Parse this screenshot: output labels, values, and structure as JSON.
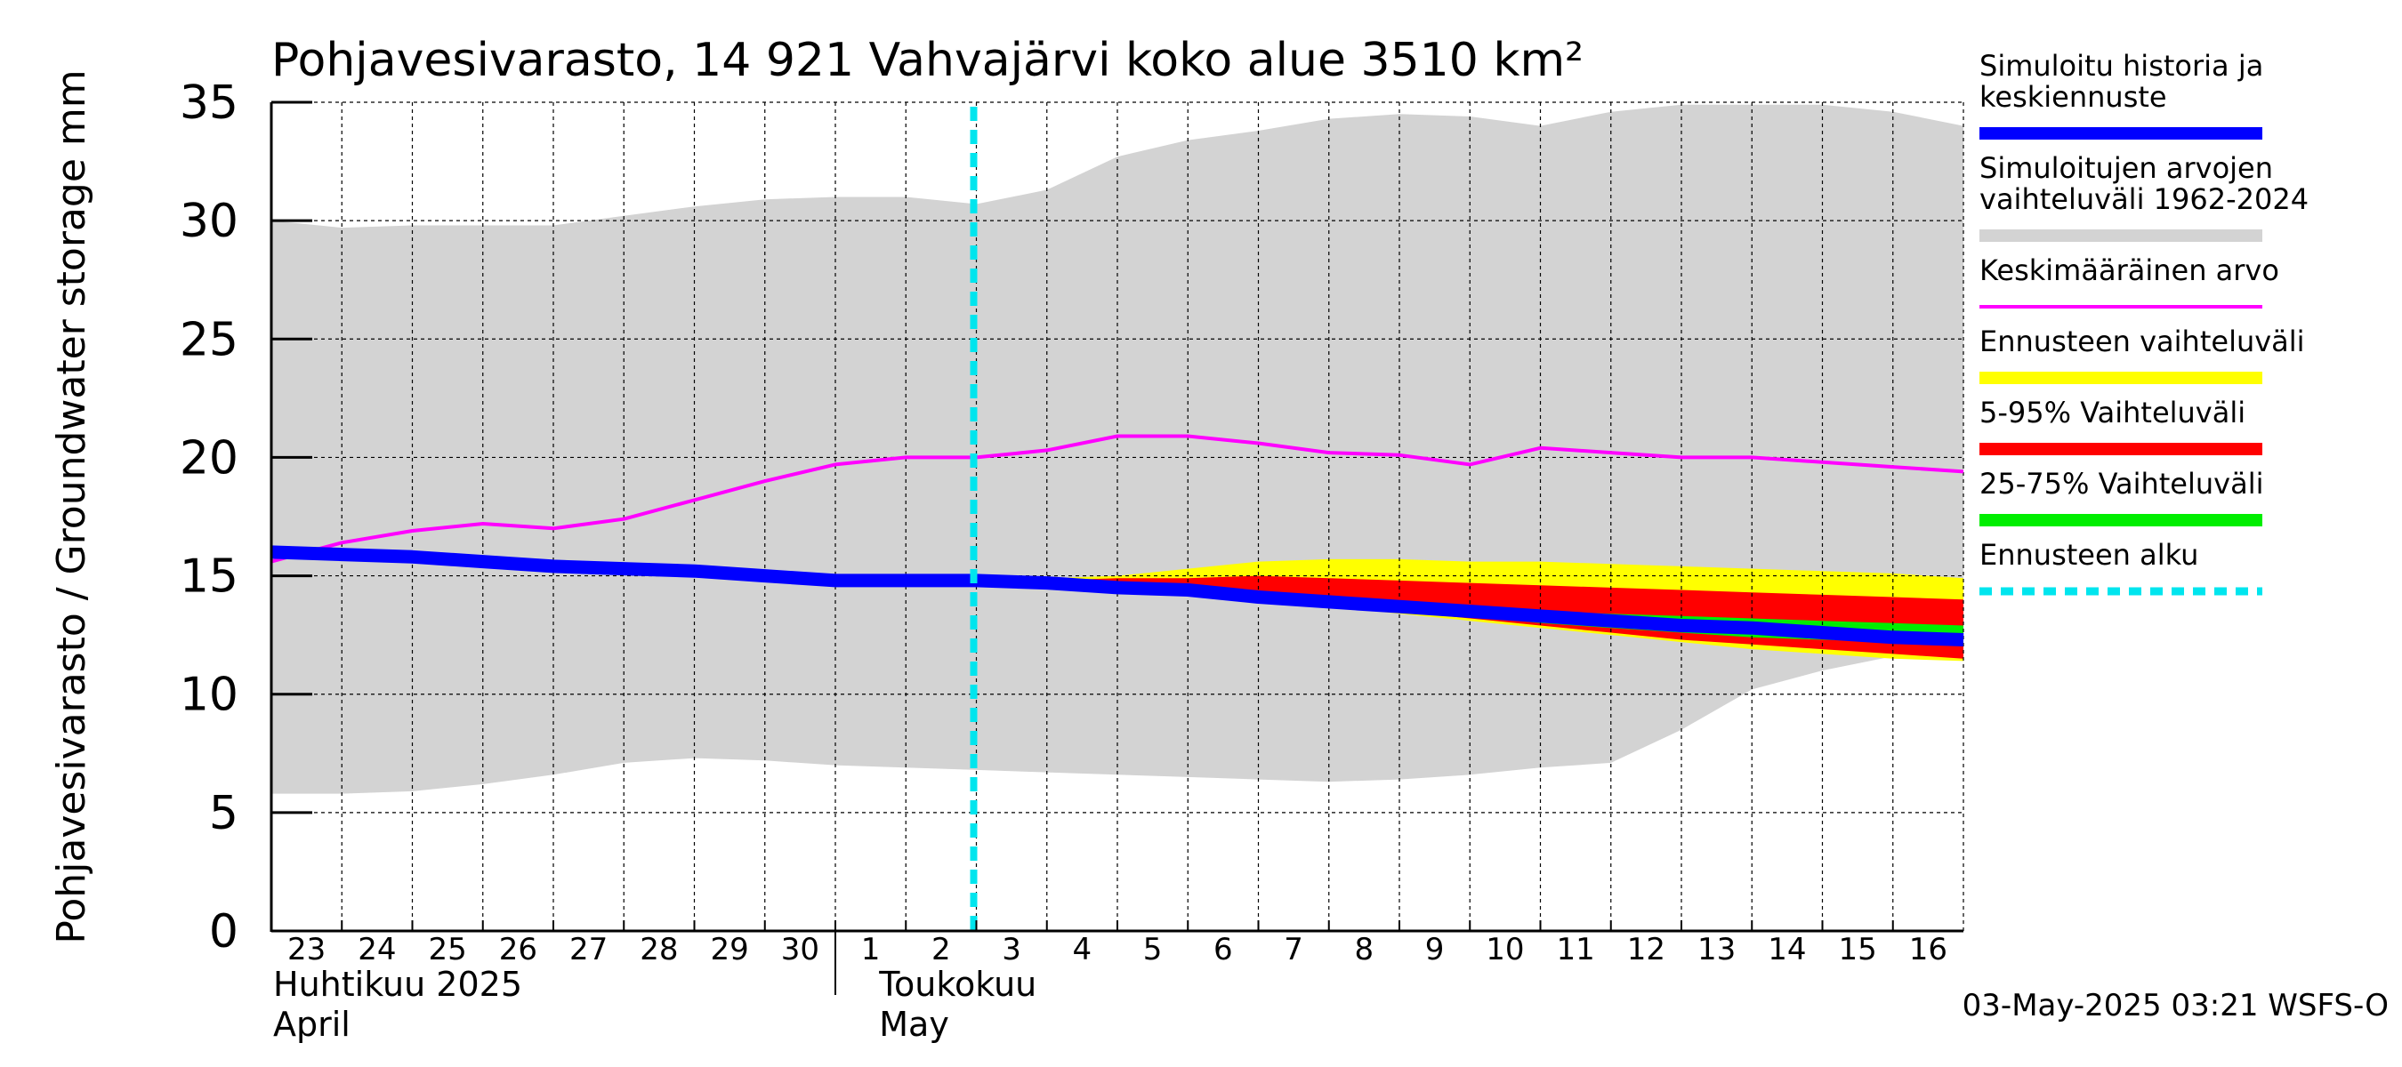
{
  "chart_data": {
    "type": "area",
    "title": "Pohjavesivarasto, 14 921 Vahvajärvi koko alue 3510 km²",
    "ylabel": "Pohjavesivarasto / Groundwater storage   mm",
    "ylim": [
      0,
      35
    ],
    "yticks": [
      0,
      5,
      10,
      15,
      20,
      25,
      30,
      35
    ],
    "grid": true,
    "x_day_labels": [
      "23",
      "24",
      "25",
      "26",
      "27",
      "28",
      "29",
      "30",
      "1",
      "2",
      "3",
      "4",
      "5",
      "6",
      "7",
      "8",
      "9",
      "10",
      "11",
      "12",
      "13",
      "14",
      "15",
      "16"
    ],
    "month_labels": [
      {
        "fi": "Huhtikuu  2025",
        "en": "April"
      },
      {
        "fi": "Toukokuu",
        "en": "May"
      }
    ],
    "x_dates": [
      "2025-04-23",
      "2025-04-24",
      "2025-04-25",
      "2025-04-26",
      "2025-04-27",
      "2025-04-28",
      "2025-04-29",
      "2025-04-30",
      "2025-05-01",
      "2025-05-02",
      "2025-05-03",
      "2025-05-04",
      "2025-05-05",
      "2025-05-06",
      "2025-05-07",
      "2025-05-08",
      "2025-05-09",
      "2025-05-10",
      "2025-05-11",
      "2025-05-12",
      "2025-05-13",
      "2025-05-14",
      "2025-05-15",
      "2025-05-16",
      "2025-05-17"
    ],
    "forecast_start": "2025-05-03",
    "series": [
      {
        "name": "Simuloitujen arvojen vaihteluväli 1962-2024",
        "kind": "band",
        "color": "#d3d3d3",
        "upper": [
          30.0,
          29.7,
          29.8,
          29.8,
          29.8,
          30.2,
          30.6,
          30.9,
          31.0,
          31.0,
          30.7,
          31.3,
          32.7,
          33.4,
          33.8,
          34.3,
          34.5,
          34.4,
          34.0,
          34.6,
          34.9,
          34.9,
          34.9,
          34.6,
          34.0
        ],
        "lower": [
          5.8,
          5.8,
          5.9,
          6.2,
          6.6,
          7.1,
          7.3,
          7.2,
          7.0,
          6.9,
          6.8,
          6.7,
          6.6,
          6.5,
          6.4,
          6.3,
          6.4,
          6.6,
          6.9,
          7.1,
          8.5,
          10.2,
          11.0,
          11.6,
          12.2
        ]
      },
      {
        "name": "Ennusteen vaihteluväli",
        "kind": "band",
        "color": "#ffff00",
        "upper": [
          null,
          null,
          null,
          null,
          null,
          null,
          null,
          null,
          null,
          null,
          14.9,
          14.9,
          15.0,
          15.3,
          15.6,
          15.7,
          15.7,
          15.6,
          15.6,
          15.5,
          15.4,
          15.3,
          15.2,
          15.1,
          14.9
        ],
        "lower": [
          null,
          null,
          null,
          null,
          null,
          null,
          null,
          null,
          null,
          null,
          14.8,
          14.7,
          14.5,
          14.3,
          14.0,
          13.7,
          13.4,
          13.1,
          12.8,
          12.5,
          12.2,
          11.9,
          11.7,
          11.5,
          11.4
        ]
      },
      {
        "name": "5-95% Vaihteluväli",
        "kind": "band",
        "color": "#ff0000",
        "upper": [
          null,
          null,
          null,
          null,
          null,
          null,
          null,
          null,
          null,
          null,
          14.8,
          14.8,
          14.9,
          14.9,
          15.0,
          14.9,
          14.8,
          14.7,
          14.6,
          14.5,
          14.4,
          14.3,
          14.2,
          14.1,
          14.0
        ],
        "lower": [
          null,
          null,
          null,
          null,
          null,
          null,
          null,
          null,
          null,
          null,
          14.8,
          14.7,
          14.5,
          14.3,
          14.0,
          13.8,
          13.5,
          13.2,
          12.9,
          12.6,
          12.3,
          12.1,
          11.9,
          11.7,
          11.5
        ]
      },
      {
        "name": "25-75% Vaihteluväli",
        "kind": "band",
        "color": "#00ee00",
        "upper": [
          null,
          null,
          null,
          null,
          null,
          null,
          null,
          null,
          null,
          null,
          14.8,
          14.7,
          14.6,
          14.4,
          14.2,
          14.0,
          13.8,
          13.6,
          13.5,
          13.4,
          13.3,
          13.2,
          13.1,
          13.0,
          12.9
        ],
        "lower": [
          null,
          null,
          null,
          null,
          null,
          null,
          null,
          null,
          null,
          null,
          14.8,
          14.7,
          14.6,
          14.4,
          14.1,
          13.9,
          13.6,
          13.3,
          13.0,
          12.8,
          12.6,
          12.4,
          12.3,
          12.2,
          12.1
        ]
      },
      {
        "name": "Keskimääräinen arvo",
        "kind": "line",
        "color": "#ff00ff",
        "values": [
          15.6,
          16.4,
          16.9,
          17.2,
          17.0,
          17.4,
          18.2,
          19.0,
          19.7,
          20.0,
          20.0,
          20.3,
          20.9,
          20.9,
          20.6,
          20.2,
          20.1,
          19.7,
          20.4,
          20.2,
          20.0,
          20.0,
          19.8,
          19.6,
          19.4
        ]
      },
      {
        "name": "Simuloitu historia ja keskiennuste",
        "kind": "line",
        "color": "#0000ff",
        "values": [
          16.0,
          15.9,
          15.8,
          15.6,
          15.4,
          15.3,
          15.2,
          15.0,
          14.8,
          14.8,
          14.8,
          14.7,
          14.5,
          14.4,
          14.1,
          13.9,
          13.7,
          13.5,
          13.3,
          13.1,
          12.9,
          12.8,
          12.6,
          12.4,
          12.3
        ]
      }
    ],
    "legend": [
      {
        "label": "Simuloitu historia ja\nkeskiennuste",
        "color": "#0000ff",
        "style": "solid"
      },
      {
        "label": "Simuloitujen arvojen\nvaihteluväli 1962-2024",
        "color": "#d3d3d3",
        "style": "solid"
      },
      {
        "label": "Keskimääräinen arvo",
        "color": "#ff00ff",
        "style": "thin"
      },
      {
        "label": "Ennusteen vaihteluväli",
        "color": "#ffff00",
        "style": "solid"
      },
      {
        "label": "5-95% Vaihteluväli",
        "color": "#ff0000",
        "style": "solid"
      },
      {
        "label": "25-75% Vaihteluväli",
        "color": "#00ee00",
        "style": "solid"
      },
      {
        "label": "Ennusteen alku",
        "color": "#00e5ee",
        "style": "dashed"
      }
    ],
    "legend_position": "right",
    "footer": "03-May-2025 03:21 WSFS-O"
  }
}
